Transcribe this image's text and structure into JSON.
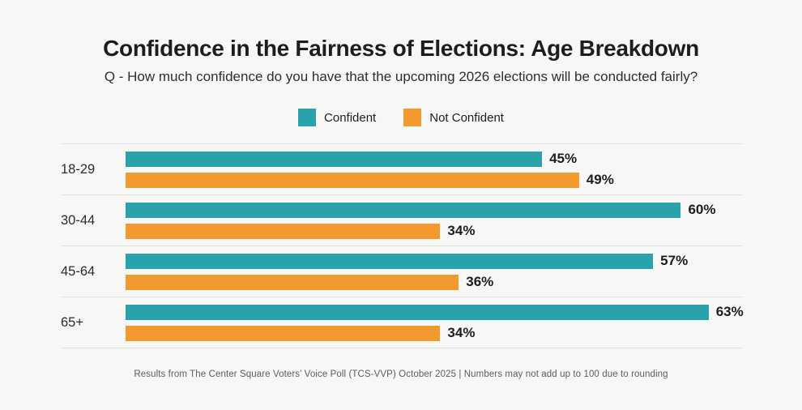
{
  "page": {
    "background": "#f7f7f6"
  },
  "header": {
    "title": "Confidence in the Fairness of Elections: Age Breakdown",
    "subtitle": "Q - How much confidence do you have that the upcoming 2026 elections will be conducted fairly?"
  },
  "legend": {
    "items": [
      {
        "label": "Confident",
        "color": "#2AA2AB"
      },
      {
        "label": "Not Confident",
        "color": "#F2992D"
      }
    ]
  },
  "chart_data": {
    "type": "bar",
    "orientation": "horizontal",
    "title": "Confidence in the Fairness of Elections: Age Breakdown",
    "subtitle": "Q - How much confidence do you have that the upcoming 2026 elections will be conducted fairly?",
    "categories": [
      "18-29",
      "30-44",
      "45-64",
      "65+"
    ],
    "series": [
      {
        "name": "Confident",
        "color": "#2AA2AB",
        "values": [
          45,
          60,
          57,
          63
        ]
      },
      {
        "name": "Not Confident",
        "color": "#F2992D",
        "values": [
          49,
          34,
          36,
          34
        ]
      }
    ],
    "value_suffix": "%",
    "xlim": [
      0,
      66.7
    ],
    "grid": false,
    "legend_position": "top-center",
    "bar_labels": true
  },
  "rows": [
    {
      "label": "18-29",
      "confident_label": "45%",
      "not_confident_label": "49%"
    },
    {
      "label": "30-44",
      "confident_label": "60%",
      "not_confident_label": "34%"
    },
    {
      "label": "45-64",
      "confident_label": "57%",
      "not_confident_label": "36%"
    },
    {
      "label": "65+",
      "confident_label": "63%",
      "not_confident_label": "34%"
    }
  ],
  "footer": {
    "source": "Results from The Center Square Voters’ Voice Poll (TCS-VVP) October 2025 | Numbers may not add up to 100 due to rounding"
  }
}
